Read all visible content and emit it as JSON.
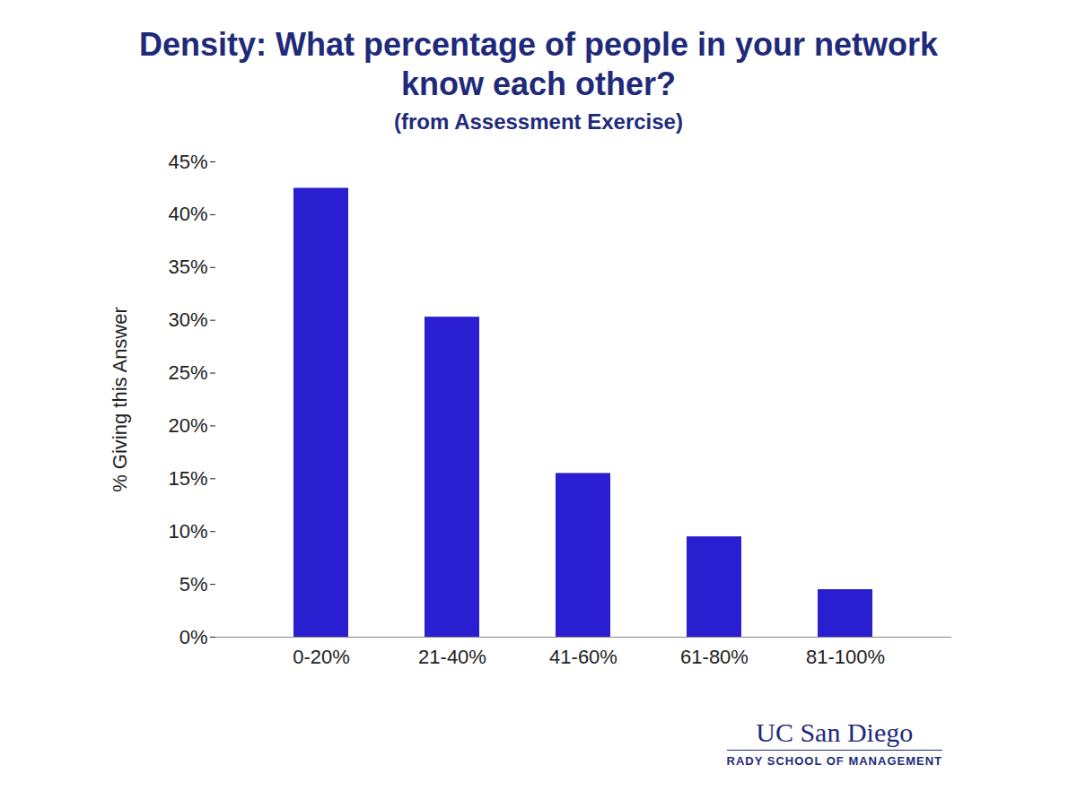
{
  "chart_data": {
    "type": "bar",
    "title": "Density: What percentage of people in your network know each other?",
    "subtitle": "(from Assessment Exercise)",
    "y_label": "% Giving this Answer",
    "categories": [
      "0-20%",
      "21-40%",
      "41-60%",
      "61-80%",
      "81-100%"
    ],
    "values": [
      42.5,
      30.3,
      15.5,
      9.5,
      4.5
    ],
    "color": "#2a1fd0",
    "ylim": [
      0,
      45
    ],
    "yticks": [
      {
        "value": 0,
        "label": "0%"
      },
      {
        "value": 5,
        "label": "5%"
      },
      {
        "value": 10,
        "label": "10%"
      },
      {
        "value": 15,
        "label": "15%"
      },
      {
        "value": 20,
        "label": "20%"
      },
      {
        "value": 25,
        "label": "25%"
      },
      {
        "value": 30,
        "label": "30%"
      },
      {
        "value": 35,
        "label": "35%"
      },
      {
        "value": 40,
        "label": "40%"
      },
      {
        "value": 45,
        "label": "45%"
      }
    ],
    "grid": false,
    "annotations": [
      "UC San Diego",
      "RADY SCHOOL OF MANAGEMENT"
    ]
  }
}
